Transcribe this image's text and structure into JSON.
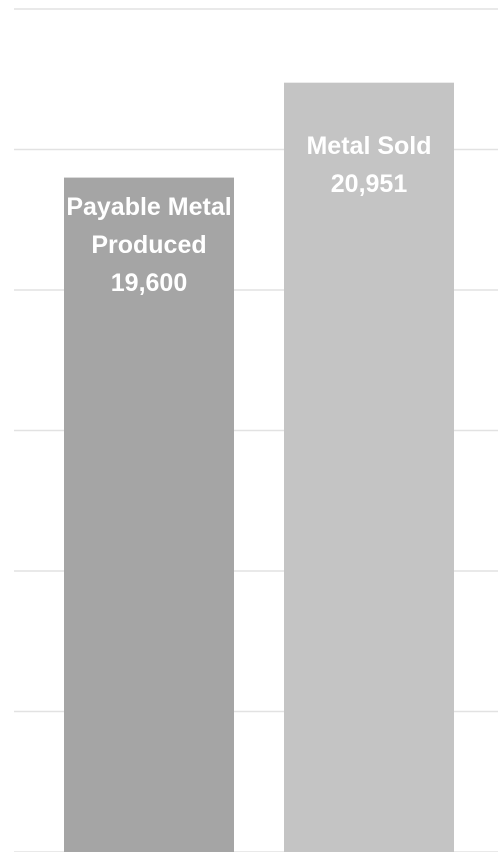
{
  "chart_data": {
    "type": "bar",
    "categories": [
      "Payable Metal Produced",
      "Metal Sold"
    ],
    "values": [
      19600,
      20951
    ],
    "value_labels": [
      "19,600",
      "20,951"
    ],
    "colors": [
      "#a5a5a5",
      "#c4c4c4"
    ],
    "ylim": [
      10000,
      22000
    ],
    "yticks": [
      10000,
      12000,
      14000,
      16000,
      18000,
      20000,
      22000
    ],
    "grid": true
  }
}
